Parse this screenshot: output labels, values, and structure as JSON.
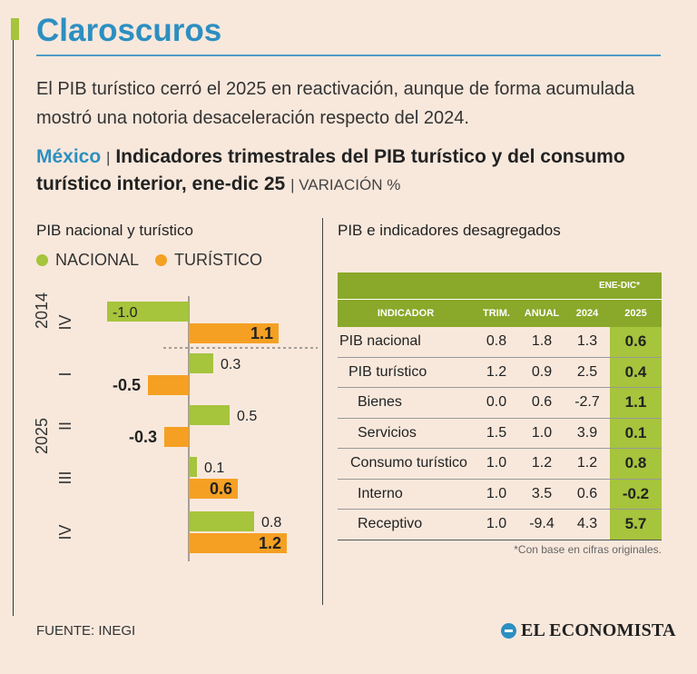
{
  "brand": "Claroscuros",
  "lead": "El PIB turístico cerró el 2025 en reactivación, aunque de forma acumulada mostró una notoria desaceleración respecto del 2024.",
  "headline": {
    "country": "México",
    "separator": "|",
    "text": "Indicadores trimestrales del PIB turístico y del consumo turístico interior, ene-dic 25",
    "unit": "| VARIACIÓN %"
  },
  "left_panel": {
    "title": "PIB nacional y turístico",
    "legend": [
      {
        "label": "NACIONAL",
        "color": "#a6c43c"
      },
      {
        "label": "TURÍSTICO",
        "color": "#f5a023"
      }
    ]
  },
  "right_panel": {
    "title": "PIB e indicadores desagregados",
    "band_label": "ENE-DIC*",
    "columns": [
      "INDICADOR",
      "TRIM.",
      "ANUAL",
      "2024",
      "2025"
    ],
    "rows": [
      {
        "indicator": "PIB nacional",
        "trim": "0.8",
        "anual": "1.8",
        "y2024": "1.3",
        "y2025": "0.6"
      },
      {
        "indicator": "PIB turístico",
        "trim": "1.2",
        "anual": "0.9",
        "y2024": "2.5",
        "y2025": "0.4"
      },
      {
        "indicator": "Bienes",
        "trim": "0.0",
        "anual": "0.6",
        "y2024": "-2.7",
        "y2025": "1.1"
      },
      {
        "indicator": "Servicios",
        "trim": "1.5",
        "anual": "1.0",
        "y2024": "3.9",
        "y2025": "0.1"
      },
      {
        "indicator": "Consumo turístico",
        "trim": "1.0",
        "anual": "1.2",
        "y2024": "1.2",
        "y2025": "0.8"
      },
      {
        "indicator": "Interno",
        "trim": "1.0",
        "anual": "3.5",
        "y2024": "0.6",
        "y2025": "-0.2"
      },
      {
        "indicator": "Receptivo",
        "trim": "1.0",
        "anual": "-9.4",
        "y2024": "4.3",
        "y2025": "5.7"
      }
    ],
    "footnote": "*Con base en cifras originales."
  },
  "source": "FUENTE: INEGI",
  "logo": "EL ECONOMISTA",
  "chart_data": {
    "type": "bar",
    "orientation": "horizontal",
    "year_groups": [
      {
        "label": "2014",
        "quarters": [
          "IV"
        ]
      },
      {
        "label": "2025",
        "quarters": [
          "I",
          "II",
          "III",
          "IV"
        ]
      }
    ],
    "categories": [
      "IV",
      "I",
      "II",
      "III",
      "IV"
    ],
    "series": [
      {
        "name": "NACIONAL",
        "color": "#a6c43c",
        "values": [
          -1.0,
          0.3,
          0.5,
          0.1,
          0.8
        ]
      },
      {
        "name": "TURÍSTICO",
        "color": "#f5a023",
        "values": [
          1.1,
          -0.5,
          -0.3,
          0.6,
          1.2
        ]
      }
    ],
    "value_labels": {
      "NACIONAL": [
        "-1.0",
        "0.3",
        "0.5",
        "0.1",
        "0.8"
      ],
      "TURÍSTICO": [
        "1.1",
        "-0.5",
        "-0.3",
        "0.6",
        "1.2"
      ]
    },
    "xlim": [
      -1.1,
      1.3
    ],
    "grid": false,
    "legend": "top-left"
  }
}
